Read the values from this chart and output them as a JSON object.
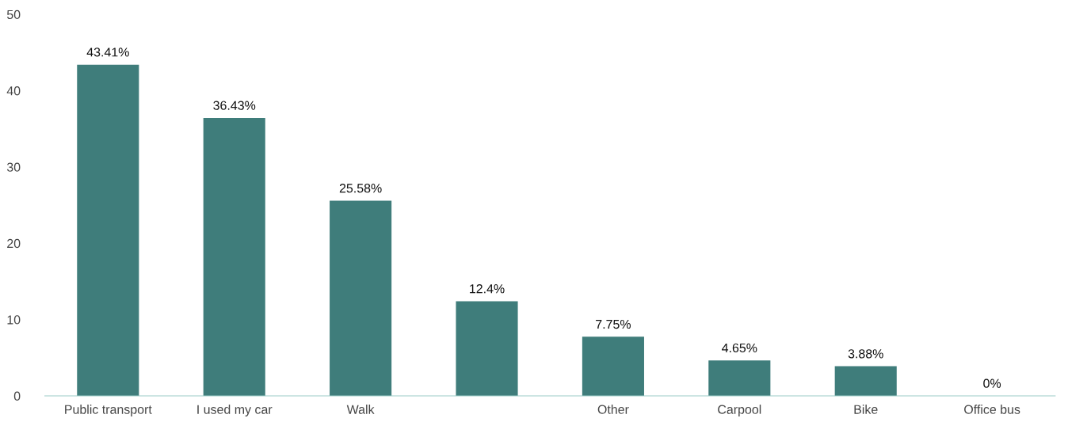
{
  "chart_data": {
    "type": "bar",
    "categories": [
      "Public transport",
      "I used my car",
      "Walk",
      null,
      "Other",
      "Carpool",
      "Bike",
      "Office bus"
    ],
    "values": [
      43.41,
      36.43,
      25.58,
      12.4,
      7.75,
      4.65,
      3.88,
      0
    ],
    "value_labels": [
      "43.41%",
      "36.43%",
      "25.58%",
      "12.4%",
      "7.75%",
      "4.65%",
      "3.88%",
      "0%"
    ],
    "color": "#3f7d7b",
    "ylim": [
      0,
      50
    ],
    "yticks": [
      0,
      10,
      20,
      30,
      40,
      50
    ],
    "grid": false,
    "legend": false
  }
}
